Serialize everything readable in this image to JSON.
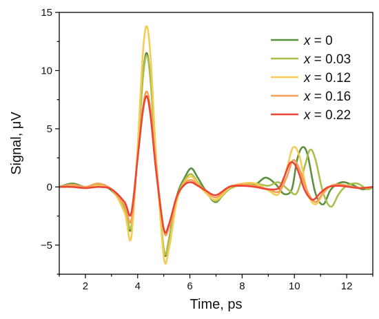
{
  "chart_data": {
    "type": "line",
    "title": "",
    "xlabel": "Time, ps",
    "ylabel": "Signal, μV",
    "xlim": [
      1,
      13
    ],
    "ylim": [
      -7.5,
      15
    ],
    "xticks": [
      2,
      4,
      6,
      8,
      10,
      12
    ],
    "yticks": [
      -5,
      0,
      5,
      10,
      15
    ],
    "xtick_labels": [
      "2",
      "4",
      "6",
      "8",
      "10",
      "12"
    ],
    "ytick_labels": [
      "−5",
      "0",
      "5",
      "10",
      "15"
    ],
    "grid": false,
    "legend_position": "top-right",
    "series": [
      {
        "name": "x = 0",
        "var": "x",
        "value_text": " = 0",
        "color": "#5a8f3c",
        "x": [
          1,
          1.5,
          2,
          2.5,
          3,
          3.5,
          3.75,
          4,
          4.2,
          4.35,
          4.5,
          4.7,
          5,
          5.2,
          5.5,
          5.8,
          6.05,
          6.3,
          6.6,
          7,
          7.5,
          8,
          8.5,
          8.9,
          9.3,
          9.6,
          9.9,
          10.1,
          10.3,
          10.5,
          10.8,
          11.1,
          11.4,
          11.8,
          12.2,
          12.6,
          13
        ],
        "y": [
          0,
          0.3,
          0,
          0.2,
          -0.3,
          -1.8,
          -3.6,
          3,
          9.5,
          11.5,
          9,
          2.5,
          -5.5,
          -4.5,
          -0.8,
          0.8,
          1.6,
          0.8,
          -0.3,
          -1.3,
          0,
          0.1,
          0.2,
          0.8,
          0.2,
          -0.6,
          -0.2,
          2.3,
          3.4,
          2.8,
          -0.5,
          -1.5,
          -0.2,
          0.4,
          0.2,
          -0.2,
          0
        ]
      },
      {
        "name": "x = 0.03",
        "var": "x",
        "value_text": " = 0.03",
        "color": "#a8bf4c",
        "x": [
          1,
          1.5,
          2,
          2.5,
          3,
          3.5,
          3.75,
          4,
          4.2,
          4.35,
          4.5,
          4.7,
          5,
          5.2,
          5.5,
          5.8,
          6.05,
          6.3,
          6.6,
          7,
          7.5,
          8,
          8.5,
          9,
          9.4,
          9.8,
          10.1,
          10.4,
          10.6,
          10.8,
          11.1,
          11.4,
          11.7,
          12,
          12.4,
          12.8,
          13
        ],
        "y": [
          0,
          0.2,
          0,
          0.2,
          -0.2,
          -1.8,
          -3.4,
          3,
          9.3,
          11.3,
          9,
          2.5,
          -5.3,
          -4.6,
          -1,
          0.6,
          1.1,
          0.4,
          -0.4,
          -1.2,
          -0.2,
          0.2,
          0.3,
          0.1,
          0.4,
          -0.3,
          -0.5,
          1.8,
          3.2,
          2.4,
          -0.5,
          -1.7,
          -0.6,
          0.1,
          0.3,
          -0.2,
          0
        ]
      },
      {
        "name": "x = 0.12",
        "var": "x",
        "value_text": " = 0.12",
        "color": "#f5cd55",
        "x": [
          1,
          1.5,
          2,
          2.5,
          3,
          3.5,
          3.75,
          4,
          4.2,
          4.35,
          4.5,
          4.7,
          5,
          5.2,
          5.5,
          5.8,
          6.05,
          6.3,
          6.6,
          7,
          7.5,
          8,
          8.5,
          9,
          9.4,
          9.7,
          9.95,
          10.2,
          10.5,
          10.8,
          11.1,
          11.4,
          11.8,
          12.2,
          12.6,
          13
        ],
        "y": [
          0,
          0.1,
          0,
          0.1,
          -0.2,
          -2.2,
          -4.4,
          3.5,
          11.5,
          13.8,
          11,
          3,
          -6,
          -5.3,
          -1.2,
          0.4,
          0.9,
          0.3,
          -0.5,
          -1.1,
          -0.1,
          0.3,
          0.3,
          -0.3,
          -0.6,
          1.5,
          3.4,
          2.6,
          -0.5,
          -1.5,
          -0.6,
          0.1,
          0.2,
          0,
          -0.1,
          0
        ]
      },
      {
        "name": "x = 0.16",
        "var": "x",
        "value_text": " = 0.16",
        "color": "#f3a05a",
        "x": [
          1,
          1.5,
          2,
          2.5,
          3,
          3.5,
          3.75,
          4,
          4.2,
          4.35,
          4.5,
          4.7,
          5,
          5.2,
          5.5,
          5.8,
          6.05,
          6.3,
          6.6,
          7,
          7.5,
          8,
          8.5,
          9,
          9.4,
          9.7,
          9.95,
          10.2,
          10.5,
          10.8,
          11.1,
          11.4,
          11.8,
          12.2,
          12.6,
          13
        ],
        "y": [
          0,
          0.2,
          0,
          0.3,
          -0.2,
          -1.6,
          -2.9,
          2.5,
          6.8,
          8.2,
          6.5,
          2,
          -3.7,
          -3.5,
          -0.9,
          0.3,
          0.6,
          0.2,
          -0.3,
          -0.9,
          0,
          0.2,
          0.1,
          -0.2,
          -0.4,
          0.8,
          2.3,
          1.5,
          -0.4,
          -1.3,
          -0.5,
          0.1,
          0.2,
          0,
          -0.1,
          0
        ]
      },
      {
        "name": "x = 0.22",
        "var": "x",
        "value_text": " = 0.22",
        "color": "#ee4433",
        "x": [
          1,
          1.5,
          2,
          2.5,
          3,
          3.5,
          3.75,
          4,
          4.2,
          4.35,
          4.5,
          4.7,
          5,
          5.2,
          5.5,
          5.8,
          6.05,
          6.3,
          6.6,
          7,
          7.5,
          8,
          8.5,
          9,
          9.4,
          9.6,
          9.85,
          10.1,
          10.4,
          10.7,
          11,
          11.3,
          11.7,
          12.1,
          12.5,
          13
        ],
        "y": [
          0,
          0,
          -0.1,
          0,
          -0.2,
          -1.3,
          -2.3,
          2.5,
          6.5,
          7.8,
          6,
          1.5,
          -3.6,
          -3.2,
          -0.8,
          0.2,
          0.4,
          0.1,
          -0.3,
          -0.7,
          0,
          0.1,
          0,
          -0.2,
          -0.1,
          0.8,
          2.1,
          1.6,
          -0.3,
          -1.1,
          -0.5,
          0,
          0.1,
          0,
          -0.1,
          0
        ]
      }
    ]
  }
}
